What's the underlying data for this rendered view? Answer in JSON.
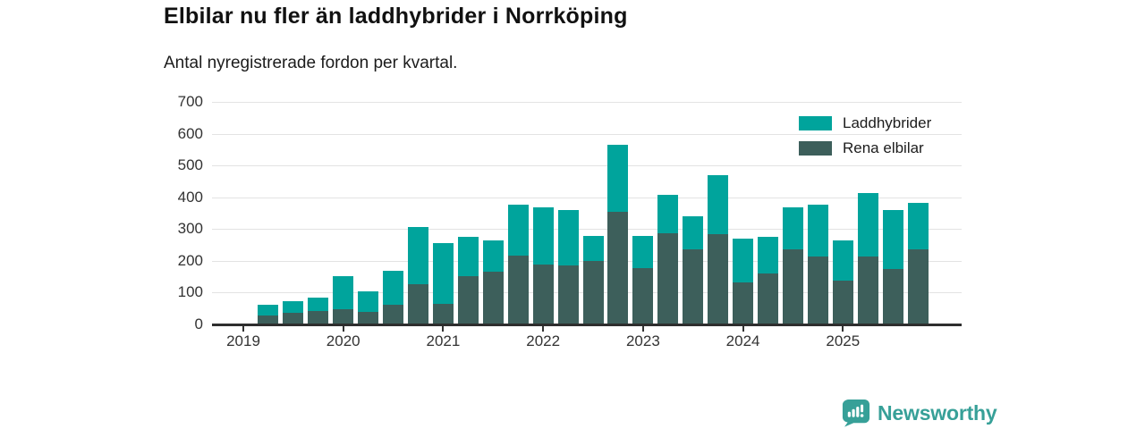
{
  "header": {
    "title": "Elbilar nu fler än laddhybrider i Norrköping",
    "subtitle": "Antal nyregistrerade fordon per kvartal."
  },
  "chart_data": {
    "type": "bar",
    "stacked": true,
    "title": "Elbilar nu fler än laddhybrider i Norrköping",
    "subtitle": "Antal nyregistrerade fordon per kvartal.",
    "ylabel": "Antal nyregistrerade fordon",
    "xlabel": "",
    "grid": "horizontal",
    "ylim": [
      0,
      700
    ],
    "yticks": [
      0,
      100,
      200,
      300,
      400,
      500,
      600,
      700
    ],
    "x_year_labels": [
      "2019",
      "2020",
      "2021",
      "2022",
      "2023",
      "2024",
      "2025"
    ],
    "categories": [
      "2019 Q2",
      "2019 Q3",
      "2019 Q4",
      "2020 Q1",
      "2020 Q2",
      "2020 Q3",
      "2020 Q4",
      "2021 Q1",
      "2021 Q2",
      "2021 Q3",
      "2021 Q4",
      "2022 Q1",
      "2022 Q2",
      "2022 Q3",
      "2022 Q4",
      "2023 Q1",
      "2023 Q2",
      "2023 Q3",
      "2023 Q4",
      "2024 Q1",
      "2024 Q2",
      "2024 Q3",
      "2024 Q4",
      "2025 Q1",
      "2025 Q2",
      "2025 Q3",
      "2025 Q4"
    ],
    "series": [
      {
        "name": "Rena elbilar",
        "color": "#3d5f5b",
        "values": [
          28,
          37,
          42,
          48,
          38,
          61,
          126,
          66,
          152,
          167,
          216,
          188,
          186,
          199,
          353,
          177,
          287,
          237,
          284,
          133,
          160,
          235,
          214,
          138,
          214,
          174,
          235
        ]
      },
      {
        "name": "Laddhybrider",
        "color": "#00a49c",
        "values": [
          33,
          35,
          41,
          104,
          65,
          107,
          180,
          190,
          123,
          98,
          162,
          180,
          174,
          78,
          212,
          100,
          120,
          104,
          186,
          138,
          116,
          132,
          162,
          125,
          200,
          185,
          148
        ]
      }
    ],
    "legend_position": "top-right",
    "legend": [
      {
        "label": "Laddhybrider",
        "color": "#00a49c"
      },
      {
        "label": "Rena elbilar",
        "color": "#3d5f5b"
      }
    ]
  },
  "footer": {
    "brand": "Newsworthy",
    "brand_color": "#37a098"
  }
}
